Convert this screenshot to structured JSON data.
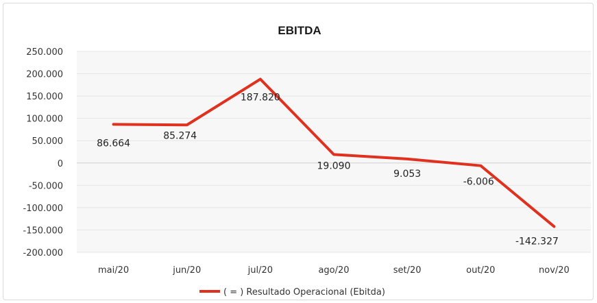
{
  "chart_data": {
    "type": "line",
    "title": "EBITDA",
    "xlabel": "",
    "ylabel": "",
    "categories": [
      "mai/20",
      "jun/20",
      "jul/20",
      "ago/20",
      "set/20",
      "out/20",
      "nov/20"
    ],
    "series": [
      {
        "name": "( = ) Resultado Operacional (Ebitda)",
        "values": [
          86664,
          85274,
          187820,
          19090,
          9053,
          -6006,
          -142327
        ],
        "labels": [
          "86.664",
          "85.274",
          "187.820",
          "19.090",
          "9.053",
          "-6.006",
          "-142.327"
        ],
        "color": "#e0301e"
      }
    ],
    "ylim": [
      -200000,
      250000
    ],
    "yticks": [
      250000,
      200000,
      150000,
      100000,
      50000,
      0,
      -50000,
      -100000,
      -150000,
      -200000
    ],
    "ytick_labels": [
      "250.000",
      "200.000",
      "150.000",
      "100.000",
      "50.000",
      "0",
      "-50.000",
      "-100.000",
      "-150.000",
      "-200.000"
    ],
    "grid": true,
    "legend": "bottom"
  }
}
